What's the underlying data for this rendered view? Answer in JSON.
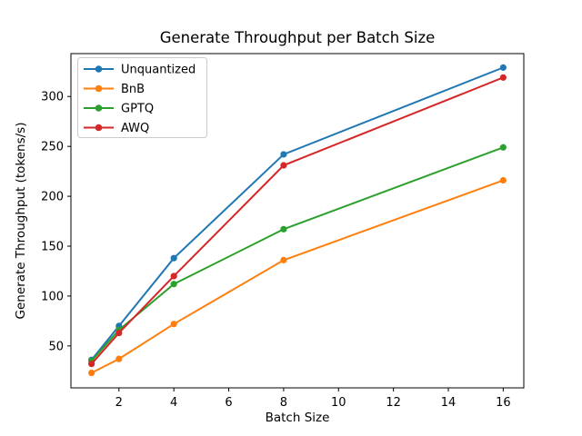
{
  "figure": {
    "background": "#ffffff"
  },
  "chart_data": {
    "type": "line",
    "title": "Generate Throughput per Batch Size",
    "xlabel": "Batch Size",
    "ylabel": "Generate Throughput (tokens/s)",
    "x": [
      1,
      2,
      4,
      8,
      16
    ],
    "series": [
      {
        "name": "Unquantized",
        "color": "#1f77b4",
        "values": [
          36,
          70,
          138,
          242,
          329
        ]
      },
      {
        "name": "BnB",
        "color": "#ff7f0e",
        "values": [
          23,
          37,
          72,
          136,
          216
        ]
      },
      {
        "name": "GPTQ",
        "color": "#2ca02c",
        "values": [
          35,
          66,
          112,
          167,
          249
        ]
      },
      {
        "name": "AWQ",
        "color": "#d62728",
        "values": [
          32,
          63,
          120,
          231,
          319
        ]
      }
    ],
    "xticks": [
      2,
      4,
      6,
      8,
      10,
      12,
      14,
      16
    ],
    "yticks": [
      50,
      100,
      150,
      200,
      250,
      300
    ],
    "xlim": [
      0.25,
      16.75
    ],
    "ylim": [
      8,
      343
    ],
    "marker": "o",
    "line_width": 2,
    "grid": false,
    "legend_position": "upper left",
    "axis_color": "#000000",
    "legend_border_color": "#cccccc",
    "legend_background": "#ffffff"
  }
}
